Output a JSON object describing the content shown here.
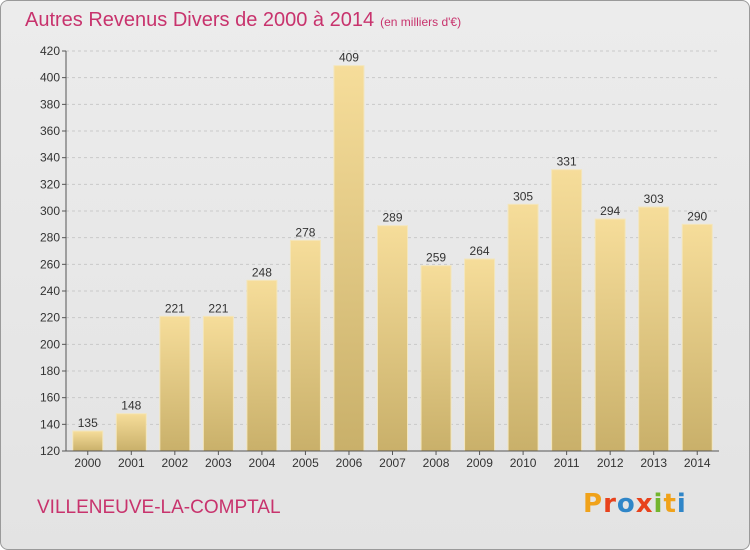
{
  "header": {
    "title": "Autres Revenus Divers de 2000 à 2014",
    "unit": "(en milliers d'€)"
  },
  "footer": {
    "place": "VILLENEUVE-LA-COMPTAL",
    "logo_letters": [
      "P",
      "r",
      "o",
      "x",
      "i",
      "t",
      "i"
    ],
    "logo_colors": [
      "#f0a21a",
      "#e8421c",
      "#2f86c8",
      "#e8421c",
      "#73b52e",
      "#f0a21a",
      "#2f86c8"
    ]
  },
  "chart_data": {
    "type": "bar",
    "title": "Autres Revenus Divers de 2000 à 2014",
    "categories": [
      "2000",
      "2001",
      "2002",
      "2003",
      "2004",
      "2005",
      "2006",
      "2007",
      "2008",
      "2009",
      "2010",
      "2011",
      "2012",
      "2013",
      "2014"
    ],
    "values": [
      135,
      148,
      221,
      221,
      248,
      278,
      409,
      289,
      259,
      264,
      305,
      331,
      294,
      303,
      290
    ],
    "ylim": [
      120,
      420
    ],
    "yticks": [
      120,
      140,
      160,
      180,
      200,
      220,
      240,
      260,
      280,
      300,
      320,
      340,
      360,
      380,
      400,
      420
    ],
    "grid": true,
    "bar_color_top": "#f6dd9a",
    "bar_color_bottom": "#c9b06a"
  }
}
